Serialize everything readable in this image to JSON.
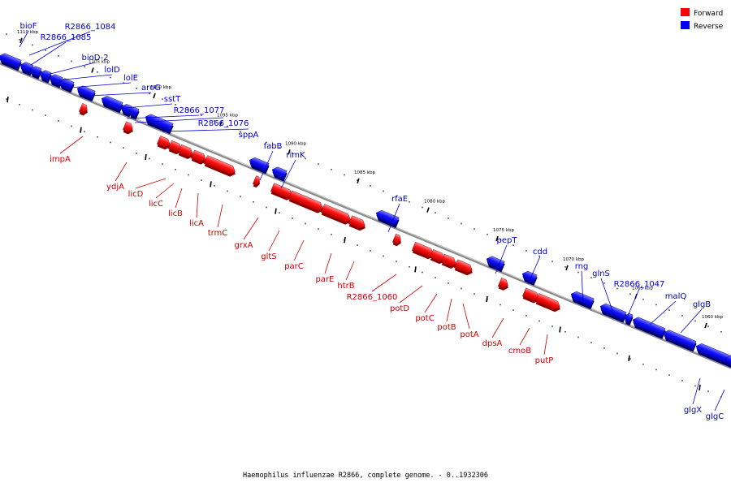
{
  "legend": {
    "forward_label": "Forward",
    "reverse_label": "Reverse"
  },
  "colors": {
    "forward": "#ff0000",
    "reverse": "#0000ff",
    "backbone": "#888888"
  },
  "caption": "Haemophilus influenzae R2866, complete genome. - 0..1932306",
  "kbp_ticks": [
    "1110 kbp",
    "1105 kbp",
    "1100 kbp",
    "1095 kbp",
    "1090 kbp",
    "1085 kbp",
    "1080 kbp",
    "1075 kbp",
    "1070 kbp",
    "1065 kbp",
    "1060 kbp"
  ],
  "genes": [
    {
      "name": "bioF",
      "strand": "reverse"
    },
    {
      "name": "R2866_1084",
      "strand": "reverse"
    },
    {
      "name": "R2866_1085",
      "strand": "reverse"
    },
    {
      "name": "bioD-2",
      "strand": "reverse"
    },
    {
      "name": "lolD",
      "strand": "reverse"
    },
    {
      "name": "lolE",
      "strand": "reverse"
    },
    {
      "name": "aroG",
      "strand": "reverse"
    },
    {
      "name": "sstT",
      "strand": "reverse"
    },
    {
      "name": "R2866_1077",
      "strand": "reverse"
    },
    {
      "name": "R2866_1076",
      "strand": "reverse"
    },
    {
      "name": "sppA",
      "strand": "reverse"
    },
    {
      "name": "impA",
      "strand": "forward"
    },
    {
      "name": "ydjA",
      "strand": "forward"
    },
    {
      "name": "licD",
      "strand": "forward"
    },
    {
      "name": "licC",
      "strand": "forward"
    },
    {
      "name": "licB",
      "strand": "forward"
    },
    {
      "name": "licA",
      "strand": "forward"
    },
    {
      "name": "trmC",
      "strand": "forward"
    },
    {
      "name": "fabB",
      "strand": "reverse"
    },
    {
      "name": "rimK",
      "strand": "reverse"
    },
    {
      "name": "grxA",
      "strand": "forward"
    },
    {
      "name": "gltS",
      "strand": "forward"
    },
    {
      "name": "parC",
      "strand": "forward"
    },
    {
      "name": "parE",
      "strand": "forward"
    },
    {
      "name": "htrB",
      "strand": "forward"
    },
    {
      "name": "rfaE",
      "strand": "reverse"
    },
    {
      "name": "R2866_1060",
      "strand": "forward"
    },
    {
      "name": "potD",
      "strand": "forward"
    },
    {
      "name": "potC",
      "strand": "forward"
    },
    {
      "name": "potB",
      "strand": "forward"
    },
    {
      "name": "potA",
      "strand": "forward"
    },
    {
      "name": "pepT",
      "strand": "reverse"
    },
    {
      "name": "cdd",
      "strand": "reverse"
    },
    {
      "name": "dpsA",
      "strand": "forward"
    },
    {
      "name": "cmoB",
      "strand": "forward"
    },
    {
      "name": "putP",
      "strand": "forward"
    },
    {
      "name": "rng",
      "strand": "reverse"
    },
    {
      "name": "glnS",
      "strand": "reverse"
    },
    {
      "name": "R2866_1047",
      "strand": "reverse"
    },
    {
      "name": "malQ",
      "strand": "reverse"
    },
    {
      "name": "glgB",
      "strand": "reverse"
    },
    {
      "name": "glgX",
      "strand": "reverse"
    },
    {
      "name": "glgC",
      "strand": "reverse"
    }
  ]
}
